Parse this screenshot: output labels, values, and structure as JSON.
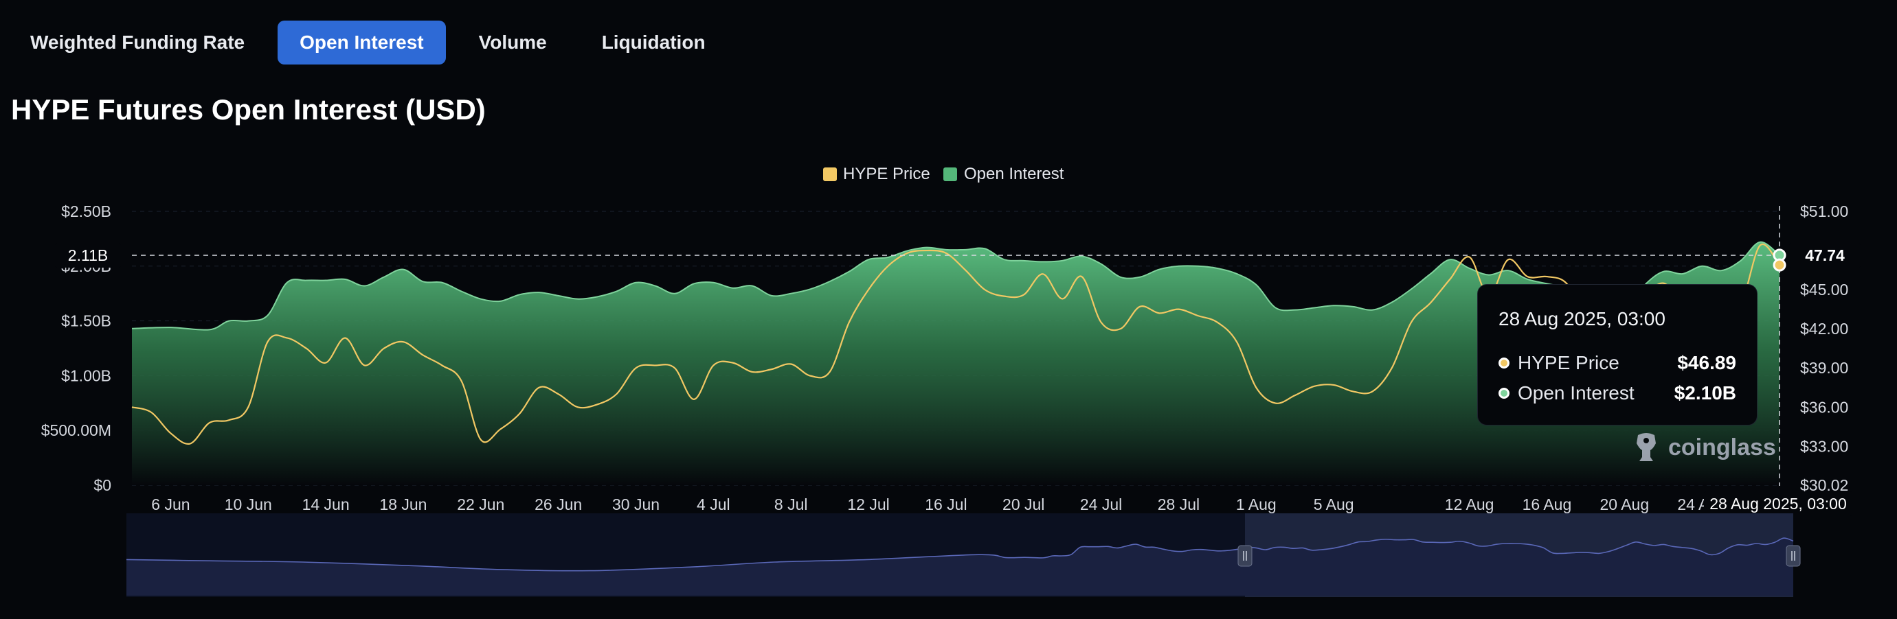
{
  "tabs": [
    {
      "label": "Weighted Funding Rate",
      "active": false
    },
    {
      "label": "Open Interest",
      "active": true
    },
    {
      "label": "Volume",
      "active": false
    },
    {
      "label": "Liquidation",
      "active": false
    }
  ],
  "title": "HYPE Futures Open Interest (USD)",
  "legend": {
    "price": "HYPE Price",
    "oi": "Open Interest"
  },
  "tooltip": {
    "time": "28 Aug 2025, 03:00",
    "price_label": "HYPE Price",
    "price_value": "$46.89",
    "oi_label": "Open Interest",
    "oi_value": "$2.10B"
  },
  "crosshair": {
    "left_label": "2.11B",
    "right_label": "47.74",
    "x_label": "28 Aug 2025, 03:00"
  },
  "watermark": "coinglass",
  "colors": {
    "price_line": "#f2c864",
    "oi_fill": "#54b77a",
    "oi_line": "#7fd39c",
    "tab_active": "#2e6ad6",
    "navigator": "#5a68b8"
  },
  "chart_data": {
    "type": "area",
    "title": "HYPE Futures Open Interest (USD)",
    "x_tick_labels": [
      "6 Jun",
      "10 Jun",
      "14 Jun",
      "18 Jun",
      "22 Jun",
      "26 Jun",
      "30 Jun",
      "4 Jul",
      "8 Jul",
      "12 Jul",
      "16 Jul",
      "20 Jul",
      "24 Jul",
      "28 Jul",
      "1 Aug",
      "5 Aug",
      "12 Aug",
      "16 Aug",
      "20 Aug",
      "24 Aug"
    ],
    "x_start": "2025-06-04",
    "x_end": "2025-08-28",
    "y_left": {
      "ticks": [
        "$0",
        "$500.00M",
        "$1.00B",
        "$1.50B",
        "$2.00B",
        "$2.50B"
      ],
      "min": 0,
      "max": 2.5,
      "unit": "B USD"
    },
    "y_right": {
      "ticks": [
        "$30.02",
        "$33.00",
        "$36.00",
        "$39.00",
        "$42.00",
        "$45.00",
        "$48.00",
        "$51.00"
      ],
      "min": 30.02,
      "max": 51.0
    },
    "legend_position": "top-center",
    "series": [
      {
        "name": "Open Interest",
        "axis": "left",
        "points": [
          [
            "2025-06-04",
            1.43
          ],
          [
            "2025-06-06",
            1.44
          ],
          [
            "2025-06-08",
            1.42
          ],
          [
            "2025-06-09",
            1.5
          ],
          [
            "2025-06-10",
            1.5
          ],
          [
            "2025-06-11",
            1.55
          ],
          [
            "2025-06-12",
            1.85
          ],
          [
            "2025-06-13",
            1.87
          ],
          [
            "2025-06-14",
            1.87
          ],
          [
            "2025-06-15",
            1.88
          ],
          [
            "2025-06-16",
            1.82
          ],
          [
            "2025-06-17",
            1.9
          ],
          [
            "2025-06-18",
            1.97
          ],
          [
            "2025-06-19",
            1.86
          ],
          [
            "2025-06-20",
            1.85
          ],
          [
            "2025-06-21",
            1.77
          ],
          [
            "2025-06-22",
            1.7
          ],
          [
            "2025-06-23",
            1.68
          ],
          [
            "2025-06-24",
            1.74
          ],
          [
            "2025-06-25",
            1.76
          ],
          [
            "2025-06-26",
            1.73
          ],
          [
            "2025-06-27",
            1.7
          ],
          [
            "2025-06-28",
            1.72
          ],
          [
            "2025-06-29",
            1.77
          ],
          [
            "2025-06-30",
            1.85
          ],
          [
            "2025-07-01",
            1.82
          ],
          [
            "2025-07-02",
            1.75
          ],
          [
            "2025-07-03",
            1.84
          ],
          [
            "2025-07-04",
            1.85
          ],
          [
            "2025-07-05",
            1.8
          ],
          [
            "2025-07-06",
            1.82
          ],
          [
            "2025-07-07",
            1.73
          ],
          [
            "2025-07-08",
            1.75
          ],
          [
            "2025-07-09",
            1.79
          ],
          [
            "2025-07-10",
            1.86
          ],
          [
            "2025-07-11",
            1.95
          ],
          [
            "2025-07-12",
            2.06
          ],
          [
            "2025-07-13",
            2.08
          ],
          [
            "2025-07-14",
            2.14
          ],
          [
            "2025-07-15",
            2.17
          ],
          [
            "2025-07-16",
            2.15
          ],
          [
            "2025-07-17",
            2.15
          ],
          [
            "2025-07-18",
            2.16
          ],
          [
            "2025-07-19",
            2.06
          ],
          [
            "2025-07-20",
            2.05
          ],
          [
            "2025-07-21",
            2.04
          ],
          [
            "2025-07-22",
            2.05
          ],
          [
            "2025-07-23",
            2.09
          ],
          [
            "2025-07-24",
            2.02
          ],
          [
            "2025-07-25",
            1.9
          ],
          [
            "2025-07-26",
            1.9
          ],
          [
            "2025-07-27",
            1.97
          ],
          [
            "2025-07-28",
            2.0
          ],
          [
            "2025-07-29",
            2.0
          ],
          [
            "2025-07-30",
            1.98
          ],
          [
            "2025-07-31",
            1.93
          ],
          [
            "2025-08-01",
            1.83
          ],
          [
            "2025-08-02",
            1.62
          ],
          [
            "2025-08-03",
            1.6
          ],
          [
            "2025-08-04",
            1.62
          ],
          [
            "2025-08-05",
            1.64
          ],
          [
            "2025-08-06",
            1.63
          ],
          [
            "2025-08-07",
            1.6
          ],
          [
            "2025-08-08",
            1.67
          ],
          [
            "2025-08-09",
            1.79
          ],
          [
            "2025-08-10",
            1.93
          ],
          [
            "2025-08-11",
            2.06
          ],
          [
            "2025-08-12",
            1.98
          ],
          [
            "2025-08-13",
            1.92
          ],
          [
            "2025-08-14",
            1.96
          ],
          [
            "2025-08-15",
            1.88
          ],
          [
            "2025-08-16",
            1.84
          ],
          [
            "2025-08-17",
            1.8
          ],
          [
            "2025-08-18",
            1.7
          ],
          [
            "2025-08-19",
            1.55
          ],
          [
            "2025-08-20",
            1.6
          ],
          [
            "2025-08-21",
            1.82
          ],
          [
            "2025-08-22",
            1.95
          ],
          [
            "2025-08-23",
            1.93
          ],
          [
            "2025-08-24",
            2.0
          ],
          [
            "2025-08-25",
            1.96
          ],
          [
            "2025-08-26",
            2.05
          ],
          [
            "2025-08-27",
            2.22
          ],
          [
            "2025-08-28",
            2.1
          ]
        ]
      },
      {
        "name": "HYPE Price",
        "axis": "right",
        "points": [
          [
            "2025-06-04",
            36.0
          ],
          [
            "2025-06-05",
            35.6
          ],
          [
            "2025-06-06",
            34.0
          ],
          [
            "2025-06-07",
            33.2
          ],
          [
            "2025-06-08",
            34.8
          ],
          [
            "2025-06-09",
            35.0
          ],
          [
            "2025-06-10",
            36.0
          ],
          [
            "2025-06-11",
            41.0
          ],
          [
            "2025-06-12",
            41.3
          ],
          [
            "2025-06-13",
            40.5
          ],
          [
            "2025-06-14",
            39.4
          ],
          [
            "2025-06-15",
            41.3
          ],
          [
            "2025-06-16",
            39.2
          ],
          [
            "2025-06-17",
            40.5
          ],
          [
            "2025-06-18",
            41.0
          ],
          [
            "2025-06-19",
            40.0
          ],
          [
            "2025-06-20",
            39.2
          ],
          [
            "2025-06-21",
            38.0
          ],
          [
            "2025-06-22",
            33.5
          ],
          [
            "2025-06-23",
            34.3
          ],
          [
            "2025-06-24",
            35.5
          ],
          [
            "2025-06-25",
            37.5
          ],
          [
            "2025-06-26",
            37.0
          ],
          [
            "2025-06-27",
            36.0
          ],
          [
            "2025-06-28",
            36.2
          ],
          [
            "2025-06-29",
            37.0
          ],
          [
            "2025-06-30",
            39.0
          ],
          [
            "2025-07-01",
            39.2
          ],
          [
            "2025-07-02",
            39.0
          ],
          [
            "2025-07-03",
            36.6
          ],
          [
            "2025-07-04",
            39.2
          ],
          [
            "2025-07-05",
            39.4
          ],
          [
            "2025-07-06",
            38.7
          ],
          [
            "2025-07-07",
            38.9
          ],
          [
            "2025-07-08",
            39.3
          ],
          [
            "2025-07-09",
            38.4
          ],
          [
            "2025-07-10",
            38.7
          ],
          [
            "2025-07-11",
            42.5
          ],
          [
            "2025-07-12",
            45.0
          ],
          [
            "2025-07-13",
            46.8
          ],
          [
            "2025-07-14",
            47.8
          ],
          [
            "2025-07-15",
            48.0
          ],
          [
            "2025-07-16",
            47.8
          ],
          [
            "2025-07-17",
            46.5
          ],
          [
            "2025-07-18",
            45.0
          ],
          [
            "2025-07-19",
            44.5
          ],
          [
            "2025-07-20",
            44.6
          ],
          [
            "2025-07-21",
            46.2
          ],
          [
            "2025-07-22",
            44.3
          ],
          [
            "2025-07-23",
            46.0
          ],
          [
            "2025-07-24",
            42.5
          ],
          [
            "2025-07-25",
            42.0
          ],
          [
            "2025-07-26",
            43.7
          ],
          [
            "2025-07-27",
            43.2
          ],
          [
            "2025-07-28",
            43.5
          ],
          [
            "2025-07-29",
            43.0
          ],
          [
            "2025-07-30",
            42.5
          ],
          [
            "2025-07-31",
            41.0
          ],
          [
            "2025-08-01",
            37.5
          ],
          [
            "2025-08-02",
            36.3
          ],
          [
            "2025-08-03",
            36.9
          ],
          [
            "2025-08-04",
            37.6
          ],
          [
            "2025-08-05",
            37.7
          ],
          [
            "2025-08-06",
            37.2
          ],
          [
            "2025-08-07",
            37.2
          ],
          [
            "2025-08-08",
            39.0
          ],
          [
            "2025-08-09",
            42.5
          ],
          [
            "2025-08-10",
            44.0
          ],
          [
            "2025-08-11",
            45.8
          ],
          [
            "2025-08-12",
            47.5
          ],
          [
            "2025-08-13",
            44.5
          ],
          [
            "2025-08-14",
            47.3
          ],
          [
            "2025-08-15",
            46.0
          ],
          [
            "2025-08-16",
            46.0
          ],
          [
            "2025-08-17",
            45.5
          ],
          [
            "2025-08-18",
            43.0
          ],
          [
            "2025-08-19",
            41.5
          ],
          [
            "2025-08-20",
            43.0
          ],
          [
            "2025-08-21",
            44.5
          ],
          [
            "2025-08-22",
            45.5
          ],
          [
            "2025-08-23",
            44.2
          ],
          [
            "2025-08-24",
            44.6
          ],
          [
            "2025-08-25",
            45.0
          ],
          [
            "2025-08-26",
            44.0
          ],
          [
            "2025-08-27",
            48.4
          ],
          [
            "2025-08-28",
            46.89
          ]
        ]
      }
    ]
  }
}
